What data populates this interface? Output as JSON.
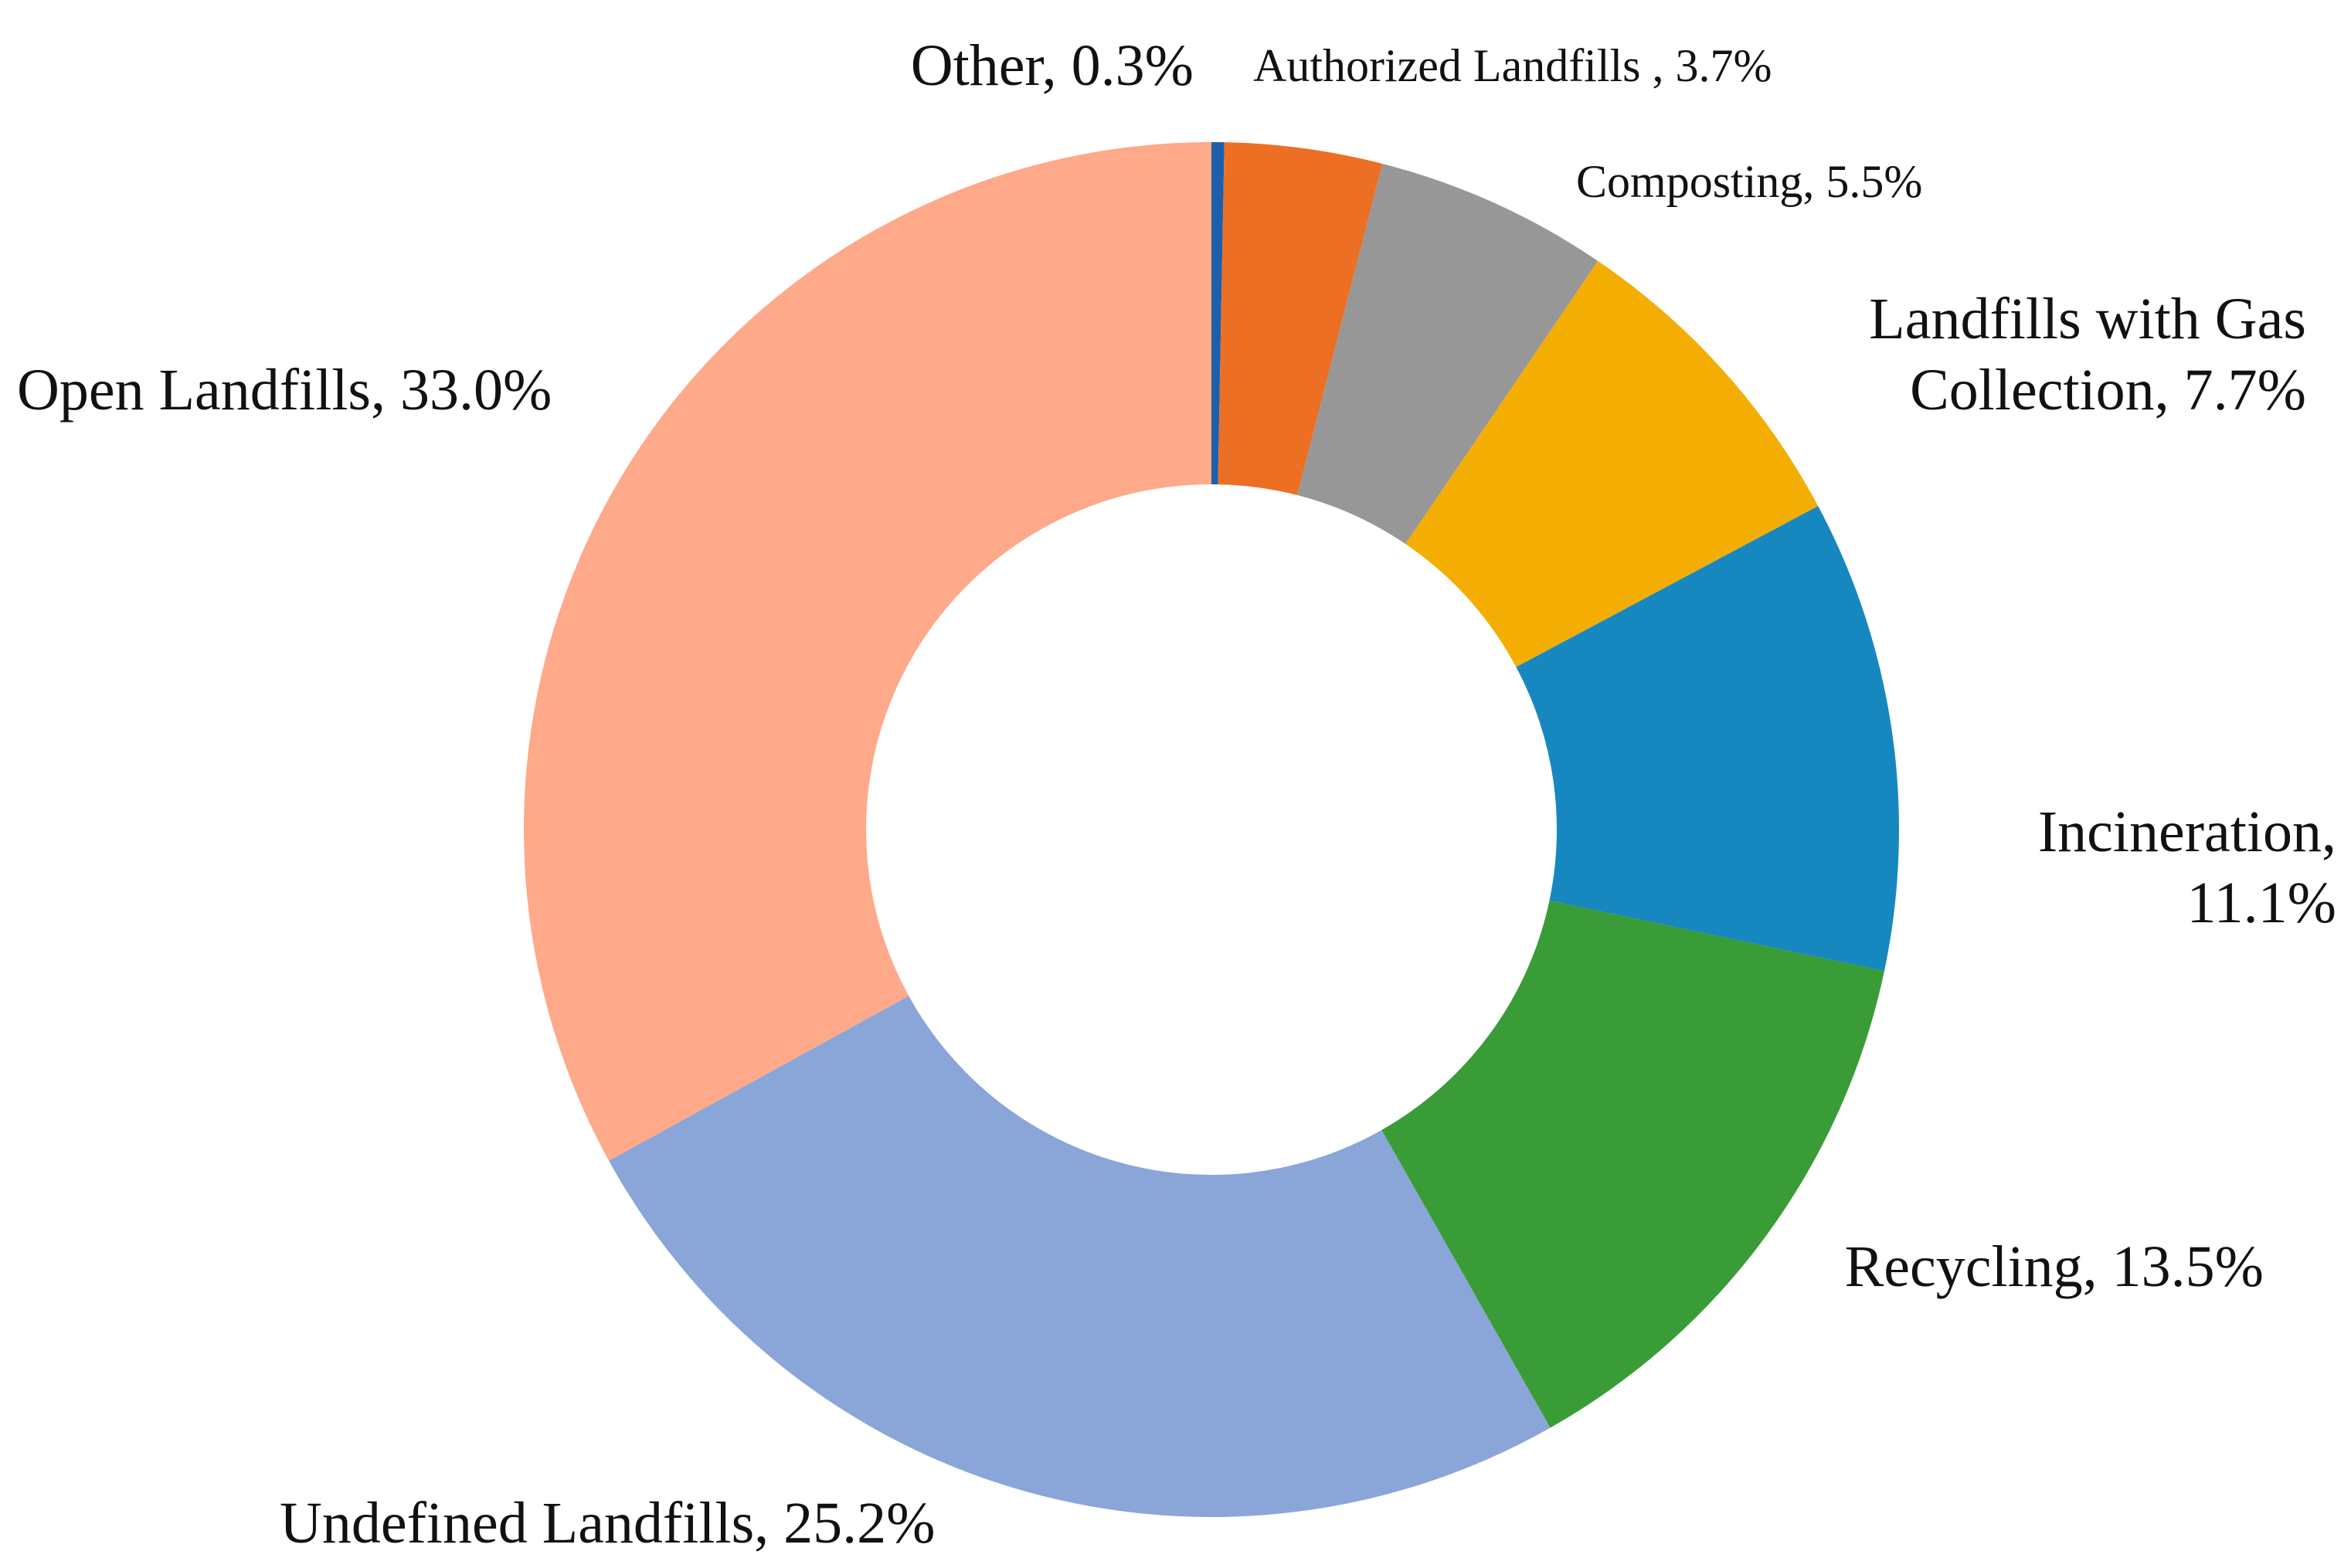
{
  "chart_data": {
    "type": "donut",
    "title": "",
    "start_angle_deg": 0,
    "direction": "clockwise",
    "series": [
      {
        "name": "Waste treatment share",
        "slices": [
          {
            "id": "other",
            "category": "Other",
            "value": 0.3,
            "label": "Other, 0.3%",
            "color": "#1F5FAA"
          },
          {
            "id": "authorized-landfills",
            "category": "Authorized Landfills",
            "value": 3.7,
            "label": "Authorized Landfills , 3.7%",
            "color": "#EC6F23"
          },
          {
            "id": "composting",
            "category": "Composting",
            "value": 5.5,
            "label": "Composting, 5.5%",
            "color": "#979797"
          },
          {
            "id": "landfills-gas-collection",
            "category": "Landfills with Gas Collection",
            "value": 7.7,
            "label": "Landfills with Gas Collection, 7.7%",
            "label_lines": [
              "Landfills with Gas",
              "Collection, 7.7%"
            ],
            "color": "#F4AE03"
          },
          {
            "id": "incineration",
            "category": "Incineration",
            "value": 11.1,
            "label": "Incineration, 11.1%",
            "label_lines": [
              "Incineration,",
              "11.1%"
            ],
            "color": "#1688BF"
          },
          {
            "id": "recycling",
            "category": "Recycling",
            "value": 13.5,
            "label": "Recycling, 13.5%",
            "color": "#3A9C36"
          },
          {
            "id": "undefined-landfills",
            "category": "Undefined Landfills",
            "value": 25.2,
            "label": "Undefined Landfills, 25.2%",
            "color": "#8AA5D8"
          },
          {
            "id": "open-landfills",
            "category": "Open Landfills",
            "value": 33.0,
            "label": "Open Landfills, 33.0%",
            "color": "#FEA98A"
          }
        ]
      }
    ],
    "legend": "none",
    "data_labels": "outside"
  }
}
